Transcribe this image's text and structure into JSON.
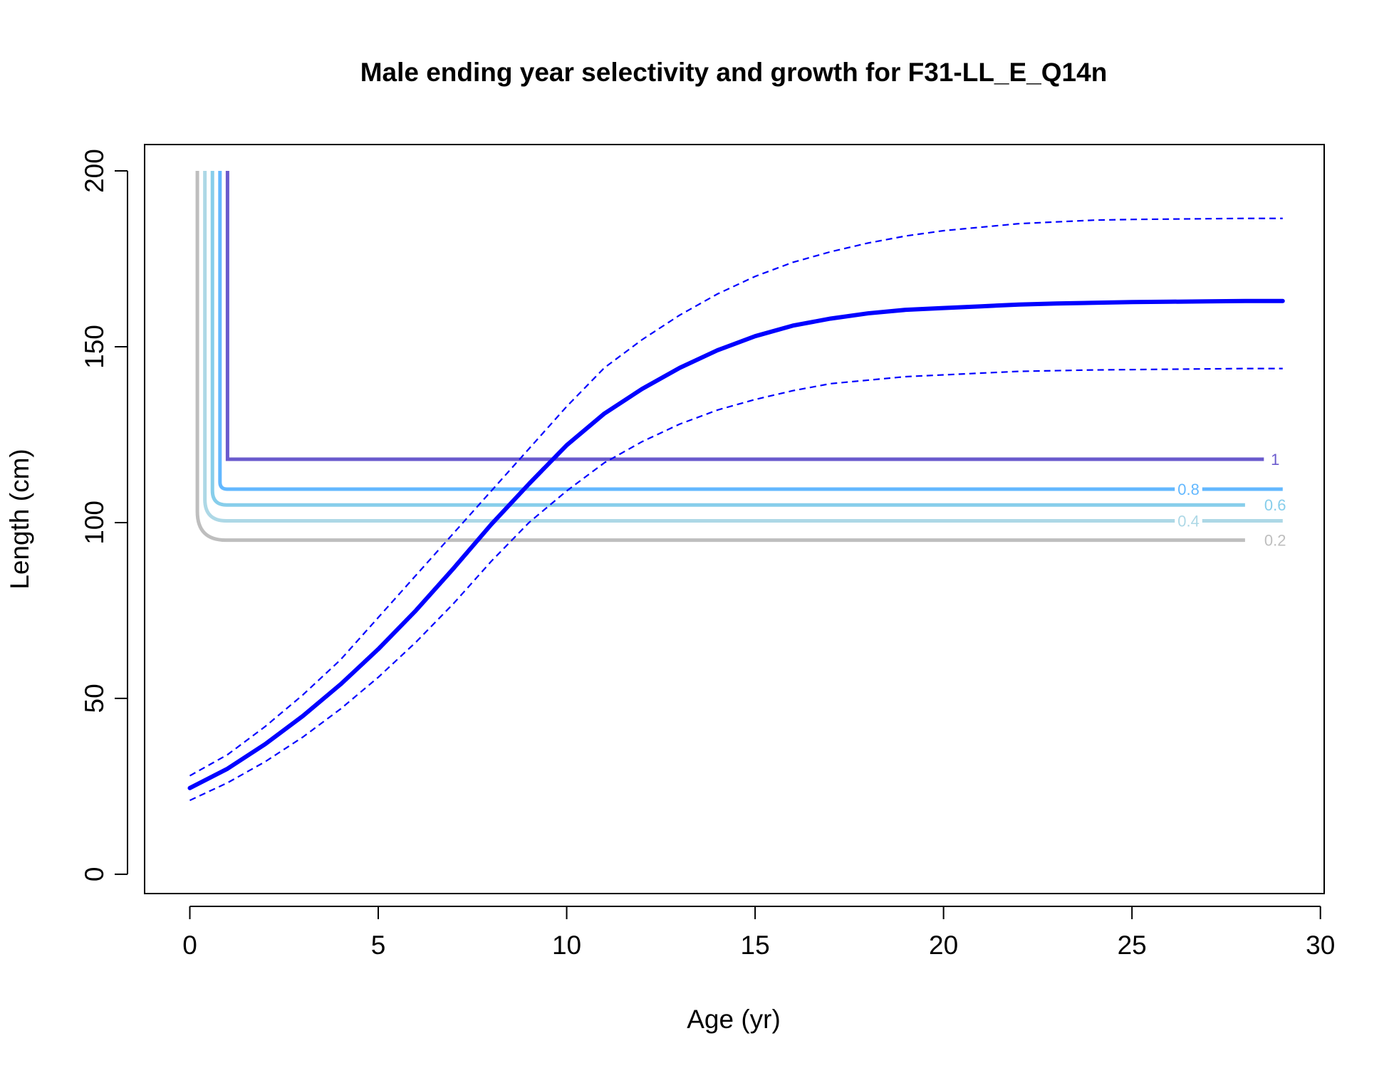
{
  "chart_data": {
    "type": "line",
    "title": "Male ending year selectivity and growth for F31-LL_E_Q14n",
    "xlabel": "Age (yr)",
    "ylabel": "Length (cm)",
    "xlim": [
      -1.2,
      30.1
    ],
    "ylim": [
      -5.5,
      207.5
    ],
    "x_ticks": [
      "0",
      "5",
      "10",
      "15",
      "20",
      "25",
      "30"
    ],
    "y_ticks": [
      "0",
      "50",
      "100",
      "150",
      "200"
    ],
    "grid": false,
    "legend": "none",
    "colors": {
      "growth": "#0000ff",
      "contour_1": "#6a5acd",
      "contour_0.8": "#63b8ff",
      "contour_0.6": "#87ceeb",
      "contour_0.4": "#add8e6",
      "contour_0.2": "#bebebe"
    },
    "growth": {
      "x": [
        0,
        1,
        2,
        3,
        4,
        5,
        6,
        7,
        8,
        9,
        10,
        11,
        12,
        13,
        14,
        15,
        16,
        17,
        18,
        19,
        20,
        21,
        22,
        23,
        24,
        25,
        26,
        27,
        28,
        29
      ],
      "mean": [
        24.5,
        30,
        37,
        45,
        54,
        64,
        75,
        87,
        99.5,
        111,
        122,
        131,
        138,
        144,
        149,
        153,
        156,
        158,
        159.5,
        160.5,
        161,
        161.5,
        162,
        162.3,
        162.5,
        162.7,
        162.8,
        162.9,
        163,
        163
      ],
      "upper": [
        28,
        34,
        42,
        51,
        61,
        73,
        85,
        97,
        109,
        121,
        133,
        144,
        152,
        159,
        165,
        170,
        174,
        177,
        179.5,
        181.5,
        183,
        184,
        185,
        185.5,
        186,
        186.2,
        186.3,
        186.4,
        186.5,
        186.5
      ],
      "lower": [
        21,
        26,
        32,
        39,
        47,
        56,
        66,
        77,
        89,
        100,
        109,
        117,
        123,
        128,
        132,
        135,
        137.5,
        139.5,
        140.5,
        141.5,
        142,
        142.5,
        143,
        143.2,
        143.4,
        143.5,
        143.6,
        143.7,
        143.8,
        143.8
      ]
    },
    "selectivity_contours": [
      {
        "label": "1",
        "x_vertical": 1.0,
        "y_flat": 118,
        "x_end": 28.5,
        "label_x": 28.8
      },
      {
        "label": "0.8",
        "x_vertical": 0.8,
        "y_flat": 109.5,
        "x_end": 29,
        "label_x": 26.5
      },
      {
        "label": "0.6",
        "x_vertical": 0.6,
        "y_flat": 105,
        "x_end": 28,
        "label_x": 28.8
      },
      {
        "label": "0.4",
        "x_vertical": 0.4,
        "y_flat": 100.5,
        "x_end": 29,
        "label_x": 26.5
      },
      {
        "label": "0.2",
        "x_vertical": 0.2,
        "y_flat": 95,
        "x_end": 28,
        "label_x": 28.8
      }
    ]
  }
}
